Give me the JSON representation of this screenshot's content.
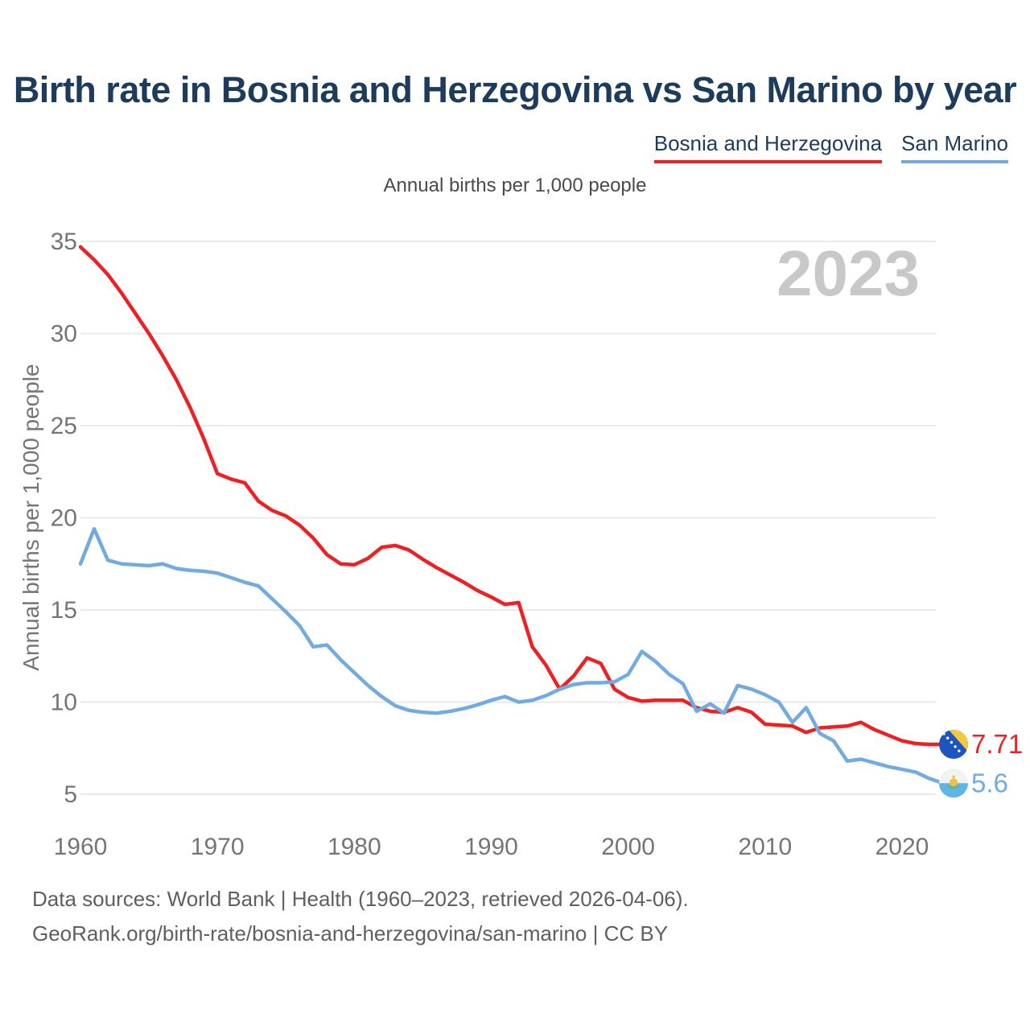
{
  "header": {
    "title": "Birth rate in Bosnia and Herzegovina vs San Marino by year"
  },
  "legend": {
    "items": [
      {
        "label": "Bosnia and Herzegovina",
        "color": "#ed2124"
      },
      {
        "label": "San Marino",
        "color": "#72abe2"
      }
    ]
  },
  "subtitle": "Annual births per 1,000 people",
  "watermark": "2023",
  "footer": {
    "line1": "Data sources: World Bank | Health (1960–2023, retrieved 2026-04-06).",
    "line2": "GeoRank.org/birth-rate/bosnia-and-herzegovina/san-marino | CC BY"
  },
  "chart_data": {
    "type": "line",
    "title": "Annual births per 1,000 people",
    "xlabel": "",
    "ylabel": "Annual births per 1,000 people",
    "x_ticks": [
      1960,
      1970,
      1980,
      1990,
      2000,
      2010,
      2020
    ],
    "y_ticks": [
      5,
      10,
      15,
      20,
      25,
      30,
      35
    ],
    "ylim": [
      5,
      35
    ],
    "xlim": [
      1960,
      2023
    ],
    "grid": "horizontal",
    "legend_position": "top-right",
    "watermark_year": "2023",
    "years": [
      1960,
      1961,
      1962,
      1963,
      1964,
      1965,
      1966,
      1967,
      1968,
      1969,
      1970,
      1971,
      1972,
      1973,
      1974,
      1975,
      1976,
      1977,
      1978,
      1979,
      1980,
      1981,
      1982,
      1983,
      1984,
      1985,
      1986,
      1987,
      1988,
      1989,
      1990,
      1991,
      1992,
      1993,
      1994,
      1995,
      1996,
      1997,
      1998,
      1999,
      2000,
      2001,
      2002,
      2003,
      2004,
      2005,
      2006,
      2007,
      2008,
      2009,
      2010,
      2011,
      2012,
      2013,
      2014,
      2015,
      2016,
      2017,
      2018,
      2019,
      2020,
      2021,
      2022,
      2023
    ],
    "series": [
      {
        "name": "Bosnia and Herzegovina",
        "color": "#ed2124",
        "end_label": "7.71",
        "values": [
          34.7,
          34.0,
          33.2,
          32.2,
          31.1,
          30.0,
          28.8,
          27.5,
          26.0,
          24.3,
          22.4,
          22.1,
          21.9,
          20.9,
          20.4,
          20.1,
          19.6,
          18.9,
          18.0,
          17.5,
          17.45,
          17.8,
          18.4,
          18.5,
          18.25,
          17.75,
          17.3,
          16.9,
          16.5,
          16.05,
          15.7,
          15.3,
          15.4,
          13.0,
          12.0,
          10.7,
          11.4,
          12.4,
          12.1,
          10.7,
          10.25,
          10.05,
          10.1,
          10.1,
          10.1,
          9.7,
          9.5,
          9.45,
          9.7,
          9.45,
          8.8,
          8.75,
          8.7,
          8.35,
          8.6,
          8.65,
          8.7,
          8.9,
          8.5,
          8.2,
          7.9,
          7.75,
          7.7,
          7.71
        ]
      },
      {
        "name": "San Marino",
        "color": "#72abe2",
        "end_label": "5.6",
        "values": [
          17.5,
          19.4,
          17.7,
          17.5,
          17.45,
          17.4,
          17.5,
          17.25,
          17.15,
          17.1,
          17.0,
          16.75,
          16.5,
          16.3,
          15.6,
          14.9,
          14.15,
          13.0,
          13.1,
          12.3,
          11.6,
          10.9,
          10.3,
          9.8,
          9.55,
          9.45,
          9.4,
          9.5,
          9.65,
          9.85,
          10.1,
          10.3,
          10.0,
          10.1,
          10.35,
          10.7,
          10.95,
          11.05,
          11.05,
          11.1,
          11.5,
          12.75,
          12.2,
          11.5,
          11.0,
          9.5,
          9.9,
          9.4,
          10.9,
          10.7,
          10.4,
          10.0,
          8.9,
          9.7,
          8.3,
          7.9,
          6.8,
          6.9,
          6.7,
          6.5,
          6.35,
          6.2,
          5.85,
          5.6
        ]
      }
    ]
  }
}
